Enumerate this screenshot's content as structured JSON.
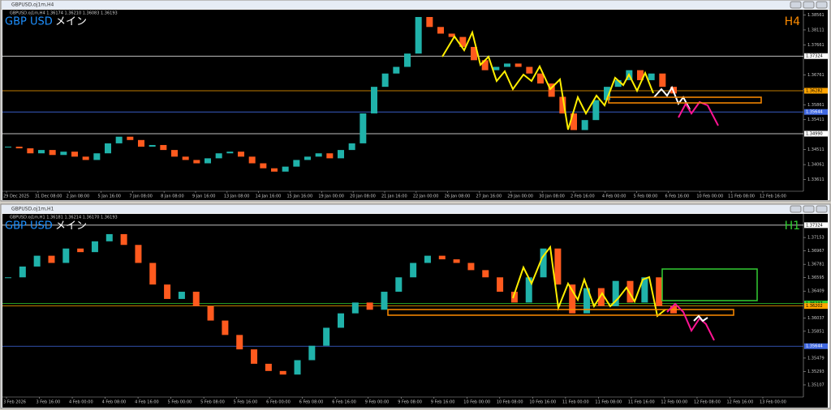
{
  "windows": [
    {
      "title": "GBPUSD,oj1m,H4",
      "info": "GBPUSD.oj1m,H4  1.36174 1.36210 1.36083 1.36193",
      "symbol": "GBP USD",
      "label": "メイン",
      "timeframe": "H4",
      "timeframe_color": "#ff8c00",
      "ylim": [
        1.3326,
        1.3867
      ],
      "yticks": [
        1.38561,
        1.38111,
        1.37661,
        1.36761,
        1.36311,
        1.35861,
        1.35411,
        1.34511,
        1.34061,
        1.33611
      ],
      "levels": [
        {
          "value": 1.37324,
          "color": "#ffffff"
        },
        {
          "value": 1.36282,
          "color": "#ffa500"
        },
        {
          "value": 1.35644,
          "color": "#4169e1"
        },
        {
          "value": {
            "value": 1.3499,
            "label": "1.34990"
          },
          "color": "#ffffff"
        }
      ],
      "time_labels": [
        "29 Dec 2025",
        "31 Dec 08:00",
        "2 Jan 08:00",
        "5 Jan 16:00",
        "7 Jan 08:00",
        "8 Jan 08:00",
        "9 Jan 16:00",
        "13 Jan 08:00",
        "14 Jan 16:00",
        "15 Jan 16:00",
        "19 Jan 00:00",
        "20 Jan 08:00",
        "21 Jan 16:00",
        "22 Jan 00:00",
        "26 Jan 08:00",
        "27 Jan 16:00",
        "29 Jan 00:00",
        "30 Jan 08:00",
        "2 Feb 16:00",
        "4 Feb 00:00",
        "5 Feb 08:00",
        "6 Feb 16:00",
        "10 Feb 00:00",
        "11 Feb 08:00",
        "12 Feb 16:00"
      ],
      "up_color": "#20b2aa",
      "down_color": "#ff5a1e",
      "closes": [
        1.346,
        1.3455,
        1.344,
        1.345,
        1.3435,
        1.3445,
        1.343,
        1.342,
        1.344,
        1.347,
        1.349,
        1.348,
        1.346,
        1.3465,
        1.345,
        1.343,
        1.342,
        1.341,
        1.3425,
        1.344,
        1.3445,
        1.343,
        1.341,
        1.3395,
        1.3385,
        1.34,
        1.342,
        1.343,
        1.344,
        1.3425,
        1.345,
        1.347,
        1.356,
        1.364,
        1.368,
        1.37,
        1.374,
        1.385,
        1.382,
        1.38,
        1.379,
        1.376,
        1.372,
        1.369,
        1.37,
        1.371,
        1.37,
        1.368,
        1.365,
        1.361,
        1.356,
        1.351,
        1.354,
        1.36,
        1.364,
        1.366,
        1.369,
        1.366,
        1.368,
        1.364,
        1.362
      ]
    },
    {
      "title": "GBPUSD,oj1m,H1",
      "info": "GBPUSD.oj1m,H1  1.36181 1.36214 1.36170 1.36193",
      "symbol": "GBP USD",
      "label": "メイン",
      "timeframe": "H1",
      "timeframe_color": "#32cd32",
      "ylim": [
        1.34938,
        1.37458
      ],
      "yticks": [
        1.37153,
        1.36967,
        1.36781,
        1.36595,
        1.36409,
        1.36037,
        1.35851,
        1.35479,
        1.35293,
        1.35107
      ],
      "levels": [
        {
          "value": 1.37324,
          "color": "#ffffff"
        },
        {
          "value": 1.36237,
          "color": "#32cd32"
        },
        {
          "value": 1.36202,
          "color": "#ffa500"
        },
        {
          "value": 1.35644,
          "color": "#4169e1"
        }
      ],
      "time_labels": [
        "3 Feb 2026",
        "3 Feb 16:00",
        "4 Feb 00:00",
        "4 Feb 08:00",
        "4 Feb 16:00",
        "5 Feb 00:00",
        "5 Feb 08:00",
        "5 Feb 16:00",
        "6 Feb 00:00",
        "6 Feb 08:00",
        "6 Feb 16:00",
        "9 Feb 00:00",
        "9 Feb 08:00",
        "9 Feb 16:00",
        "10 Feb 00:00",
        "10 Feb 08:00",
        "10 Feb 16:00",
        "11 Feb 00:00",
        "11 Feb 08:00",
        "11 Feb 16:00",
        "12 Feb 00:00",
        "12 Feb 08:00",
        "12 Feb 16:00",
        "13 Feb 00:00"
      ],
      "up_color": "#20b2aa",
      "down_color": "#ff5a1e",
      "closes": [
        1.366,
        1.3675,
        1.369,
        1.368,
        1.37,
        1.3695,
        1.371,
        1.372,
        1.3705,
        1.368,
        1.365,
        1.363,
        1.364,
        1.362,
        1.36,
        1.358,
        1.356,
        1.354,
        1.353,
        1.3525,
        1.3545,
        1.3565,
        1.359,
        1.361,
        1.3625,
        1.3615,
        1.364,
        1.366,
        1.368,
        1.369,
        1.3685,
        1.368,
        1.367,
        1.366,
        1.364,
        1.3625,
        1.366,
        1.37,
        1.365,
        1.361,
        1.3645,
        1.362,
        1.3655,
        1.3625,
        1.366,
        1.362,
        1.361
      ]
    }
  ]
}
